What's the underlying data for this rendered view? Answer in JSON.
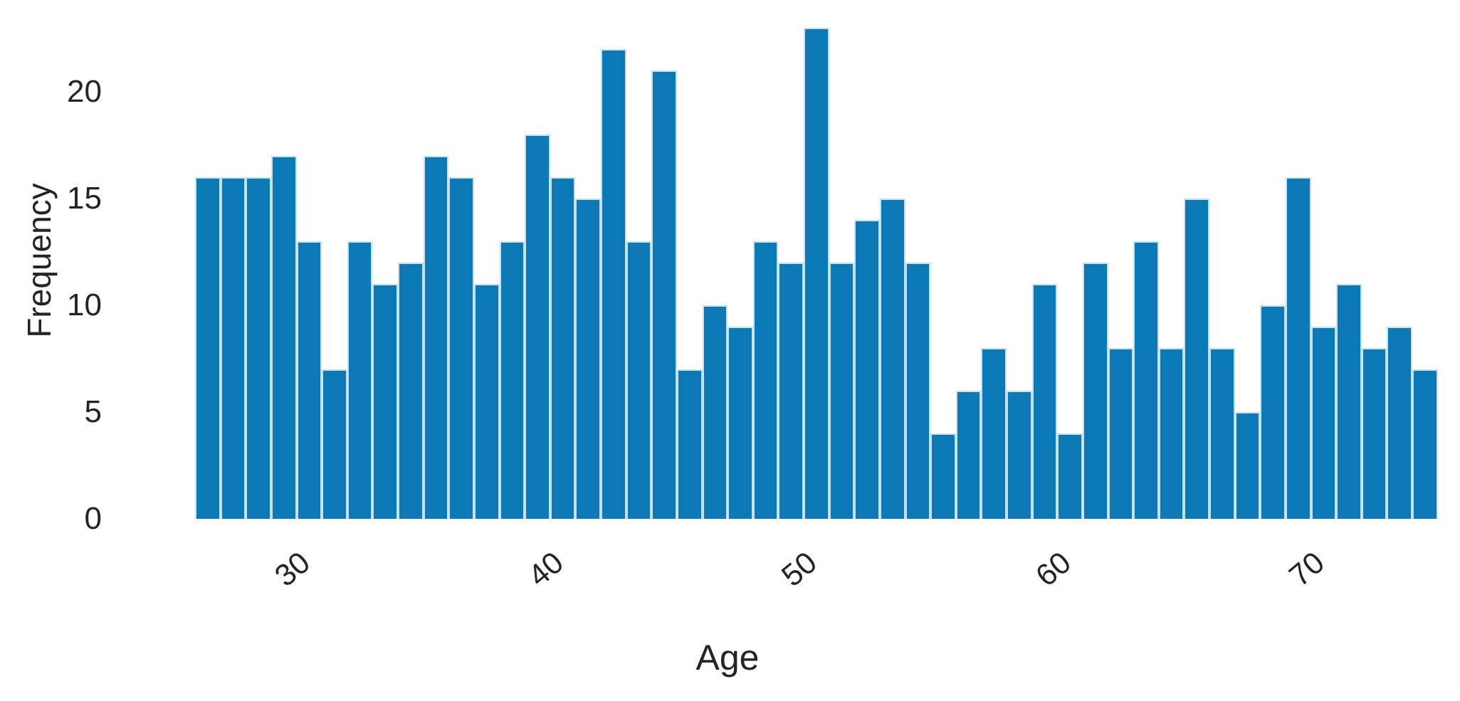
{
  "chart_data": {
    "type": "bar",
    "subtype": "histogram",
    "title": "",
    "xlabel": "Age",
    "ylabel": "Frequency",
    "bin_width": 1,
    "bin_start_ages": [
      26,
      27,
      28,
      29,
      30,
      31,
      32,
      33,
      34,
      35,
      36,
      37,
      38,
      39,
      40,
      41,
      42,
      43,
      44,
      45,
      46,
      47,
      48,
      49,
      50,
      51,
      52,
      53,
      54,
      55,
      56,
      57,
      58,
      59,
      60,
      61,
      62,
      63,
      64,
      65,
      66,
      67,
      68,
      69,
      70,
      71,
      72,
      73,
      74
    ],
    "counts": [
      16,
      16,
      16,
      17,
      13,
      7,
      13,
      11,
      12,
      17,
      16,
      11,
      13,
      18,
      16,
      15,
      22,
      13,
      21,
      7,
      10,
      9,
      13,
      12,
      23,
      12,
      14,
      15,
      12,
      4,
      6,
      8,
      6,
      11,
      4,
      12,
      8,
      13,
      8,
      15,
      8,
      5,
      10,
      16,
      9,
      11,
      8,
      9,
      7
    ],
    "x_tick_labels": [
      30,
      40,
      50,
      60,
      70
    ],
    "y_tick_labels": [
      0,
      5,
      10,
      15,
      20
    ],
    "x_range": [
      26,
      75
    ],
    "ylim": [
      0,
      23.1
    ],
    "grid": false,
    "legend": "none",
    "bar_color": "#0b79b6",
    "bar_edge_color": "#ffffff",
    "text_color": "#242424",
    "background_color": "#ffffff"
  }
}
